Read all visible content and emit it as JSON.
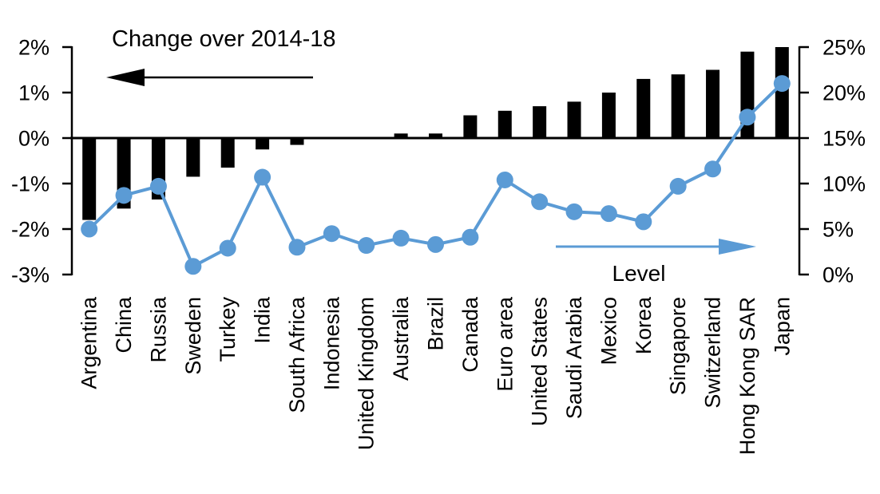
{
  "chart_data": {
    "type": "bar+line",
    "title": "",
    "categories": [
      "Argentina",
      "China",
      "Russia",
      "Sweden",
      "Turkey",
      "India",
      "South Africa",
      "Indonesia",
      "United Kingdom",
      "Australia",
      "Brazil",
      "Canada",
      "Euro area",
      "United States",
      "Saudi Arabia",
      "Mexico",
      "Korea",
      "Singapore",
      "Switzerland",
      "Hong Kong SAR",
      "Japan"
    ],
    "series": [
      {
        "name": "Change over 2014-18",
        "type": "bar",
        "axis": "left",
        "color": "#000000",
        "values": [
          -1.8,
          -1.55,
          -1.35,
          -0.85,
          -0.65,
          -0.25,
          -0.15,
          0,
          0,
          0.1,
          0.1,
          0.5,
          0.6,
          0.7,
          0.8,
          1.0,
          1.3,
          1.4,
          1.5,
          1.9,
          2.0
        ]
      },
      {
        "name": "Level",
        "type": "line",
        "axis": "right",
        "color": "#5B9BD5",
        "values": [
          5.0,
          8.7,
          9.7,
          0.9,
          2.9,
          10.7,
          3.0,
          4.5,
          3.2,
          4.0,
          3.3,
          4.1,
          10.4,
          8.0,
          6.9,
          6.7,
          5.8,
          9.7,
          11.6,
          17.3,
          21.0
        ]
      }
    ],
    "left_axis": {
      "min": -3,
      "max": 2,
      "step": 1,
      "unit": "%",
      "tick_labels": [
        "2%",
        "1%",
        "0%",
        "-1%",
        "-2%",
        "-3%"
      ],
      "side": "left"
    },
    "right_axis": {
      "min": 0,
      "max": 25,
      "step": 5,
      "unit": "%",
      "tick_labels": [
        "25%",
        "20%",
        "15%",
        "10%",
        "5%",
        "0%"
      ],
      "side": "right"
    },
    "grid": false,
    "legend_position": "in-plot annotations with arrows",
    "annotations": [
      {
        "text": "Change over 2014-18",
        "arrow_direction": "left",
        "color": "#000000"
      },
      {
        "text": "Level",
        "arrow_direction": "right",
        "color": "#5B9BD5"
      }
    ]
  },
  "colors": {
    "bar": "#000000",
    "line": "#5B9BD5",
    "text": "#000000",
    "background": "#FFFFFF"
  }
}
